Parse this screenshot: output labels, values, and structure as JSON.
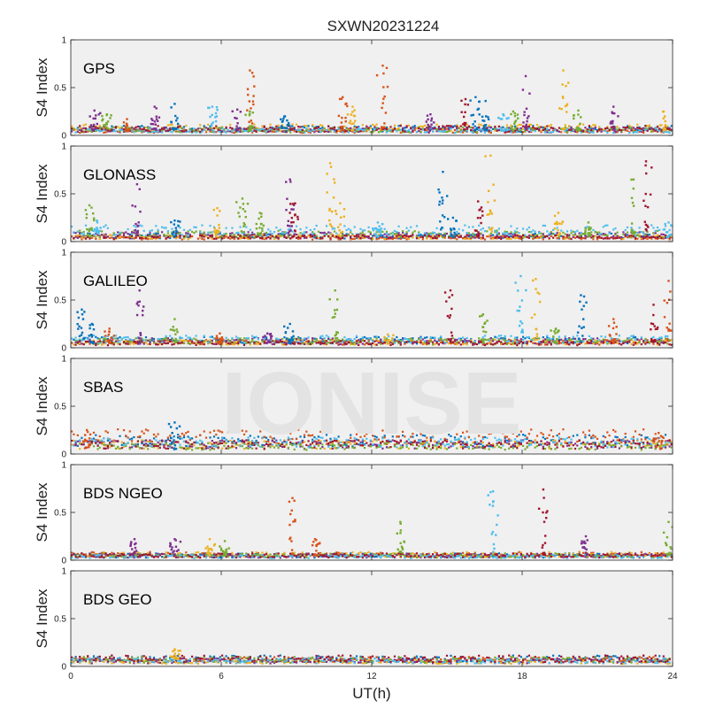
{
  "chart_data": {
    "type": "scatter",
    "title": "SXWN20231224",
    "watermark": "IONISE",
    "xlabel": "UT(h)",
    "ylabel": "S4 Index",
    "xlim": [
      0,
      24
    ],
    "ylim": [
      0,
      1
    ],
    "xticks": [
      "0",
      "6",
      "12",
      "18",
      "24"
    ],
    "yticks": [
      "0",
      "0.5",
      "1"
    ],
    "panel_background": "#f0f0f0",
    "series_colors": [
      "#0072BD",
      "#D95319",
      "#EDB120",
      "#7E2F8E",
      "#77AC30",
      "#4DBEEE",
      "#A2142F"
    ],
    "panels": [
      {
        "label": "GPS",
        "baseline": [
          0.07,
          0.05,
          0.08,
          0.06,
          0.06,
          0.05,
          0.07
        ],
        "spikes": [
          {
            "x": 0.9,
            "y": 0.26,
            "s": 3
          },
          {
            "x": 1.4,
            "y": 0.22,
            "s": 4
          },
          {
            "x": 2.2,
            "y": 0.17,
            "s": 1
          },
          {
            "x": 3.3,
            "y": 0.3,
            "s": 3
          },
          {
            "x": 4.1,
            "y": 0.33,
            "s": 0
          },
          {
            "x": 5.6,
            "y": 0.3,
            "s": 5
          },
          {
            "x": 6.6,
            "y": 0.27,
            "s": 3
          },
          {
            "x": 7.1,
            "y": 0.68,
            "s": 1
          },
          {
            "x": 7.1,
            "y": 0.25,
            "s": 4
          },
          {
            "x": 8.5,
            "y": 0.2,
            "s": 0
          },
          {
            "x": 10.8,
            "y": 0.4,
            "s": 1
          },
          {
            "x": 11.2,
            "y": 0.3,
            "s": 2
          },
          {
            "x": 12.4,
            "y": 0.73,
            "s": 1
          },
          {
            "x": 14.3,
            "y": 0.22,
            "s": 3
          },
          {
            "x": 15.7,
            "y": 0.38,
            "s": 6
          },
          {
            "x": 16.1,
            "y": 0.4,
            "s": 0
          },
          {
            "x": 16.5,
            "y": 0.36,
            "s": 0
          },
          {
            "x": 17.2,
            "y": 0.22,
            "s": 5
          },
          {
            "x": 18.1,
            "y": 0.62,
            "s": 3
          },
          {
            "x": 17.6,
            "y": 0.25,
            "s": 4
          },
          {
            "x": 19.6,
            "y": 0.68,
            "s": 2
          },
          {
            "x": 20.2,
            "y": 0.26,
            "s": 4
          },
          {
            "x": 21.6,
            "y": 0.3,
            "s": 3
          },
          {
            "x": 23.6,
            "y": 0.25,
            "s": 2
          }
        ]
      },
      {
        "label": "GLONASS",
        "baseline": [
          0.06,
          0.04,
          0.05,
          0.07,
          0.08,
          0.12,
          0.05
        ],
        "spikes": [
          {
            "x": 0.7,
            "y": 0.38,
            "s": 4
          },
          {
            "x": 1.0,
            "y": 0.22,
            "s": 5
          },
          {
            "x": 2.6,
            "y": 0.6,
            "s": 3
          },
          {
            "x": 4.1,
            "y": 0.22,
            "s": 0
          },
          {
            "x": 5.8,
            "y": 0.35,
            "s": 2
          },
          {
            "x": 6.8,
            "y": 0.45,
            "s": 4
          },
          {
            "x": 7.5,
            "y": 0.3,
            "s": 4
          },
          {
            "x": 8.7,
            "y": 0.65,
            "s": 3
          },
          {
            "x": 8.9,
            "y": 0.4,
            "s": 6
          },
          {
            "x": 10.3,
            "y": 0.82,
            "s": 2
          },
          {
            "x": 10.7,
            "y": 0.4,
            "s": 2
          },
          {
            "x": 12.2,
            "y": 0.2,
            "s": 5
          },
          {
            "x": 14.8,
            "y": 0.73,
            "s": 0
          },
          {
            "x": 15.2,
            "y": 0.25,
            "s": 0
          },
          {
            "x": 16.2,
            "y": 0.42,
            "s": 6
          },
          {
            "x": 16.7,
            "y": 0.9,
            "s": 2
          },
          {
            "x": 19.4,
            "y": 0.3,
            "s": 2
          },
          {
            "x": 20.6,
            "y": 0.2,
            "s": 4
          },
          {
            "x": 22.4,
            "y": 0.65,
            "s": 4
          },
          {
            "x": 22.9,
            "y": 0.84,
            "s": 6
          },
          {
            "x": 23.8,
            "y": 0.2,
            "s": 5
          }
        ]
      },
      {
        "label": "GALILEO",
        "baseline": [
          0.08,
          0.06,
          0.06,
          0.07,
          0.07,
          0.09,
          0.05
        ],
        "spikes": [
          {
            "x": 0.4,
            "y": 0.4,
            "s": 0
          },
          {
            "x": 0.8,
            "y": 0.25,
            "s": 0
          },
          {
            "x": 1.5,
            "y": 0.2,
            "s": 1
          },
          {
            "x": 2.7,
            "y": 0.6,
            "s": 3
          },
          {
            "x": 4.1,
            "y": 0.3,
            "s": 4
          },
          {
            "x": 5.9,
            "y": 0.15,
            "s": 1
          },
          {
            "x": 7.8,
            "y": 0.15,
            "s": 3
          },
          {
            "x": 8.7,
            "y": 0.25,
            "s": 0
          },
          {
            "x": 10.5,
            "y": 0.6,
            "s": 4
          },
          {
            "x": 12.6,
            "y": 0.14,
            "s": 2
          },
          {
            "x": 15.1,
            "y": 0.6,
            "s": 6
          },
          {
            "x": 16.4,
            "y": 0.35,
            "s": 4
          },
          {
            "x": 17.9,
            "y": 0.75,
            "s": 5
          },
          {
            "x": 18.5,
            "y": 0.72,
            "s": 2
          },
          {
            "x": 19.3,
            "y": 0.2,
            "s": 4
          },
          {
            "x": 20.3,
            "y": 0.55,
            "s": 0
          },
          {
            "x": 21.6,
            "y": 0.3,
            "s": 1
          },
          {
            "x": 23.2,
            "y": 0.45,
            "s": 6
          },
          {
            "x": 23.8,
            "y": 0.7,
            "s": 1
          }
        ]
      },
      {
        "label": "SBAS",
        "baseline": [
          0.14,
          0.18,
          0.1,
          0.1,
          0.08,
          0.12,
          0.1
        ],
        "spikes": [
          {
            "x": 4.1,
            "y": 0.33,
            "s": 0
          },
          {
            "x": 0.6,
            "y": 0.25,
            "s": 1
          },
          {
            "x": 23.4,
            "y": 0.22,
            "s": 1
          }
        ]
      },
      {
        "label": "BDS NGEO",
        "baseline": [
          0.05,
          0.06,
          0.06,
          0.05,
          0.05,
          0.04,
          0.05
        ],
        "spikes": [
          {
            "x": 2.5,
            "y": 0.22,
            "s": 3
          },
          {
            "x": 4.1,
            "y": 0.22,
            "s": 3
          },
          {
            "x": 5.5,
            "y": 0.22,
            "s": 2
          },
          {
            "x": 6.1,
            "y": 0.2,
            "s": 4
          },
          {
            "x": 8.8,
            "y": 0.65,
            "s": 1
          },
          {
            "x": 9.7,
            "y": 0.22,
            "s": 1
          },
          {
            "x": 13.1,
            "y": 0.4,
            "s": 4
          },
          {
            "x": 16.8,
            "y": 0.72,
            "s": 5
          },
          {
            "x": 18.8,
            "y": 0.74,
            "s": 6
          },
          {
            "x": 20.5,
            "y": 0.25,
            "s": 3
          },
          {
            "x": 23.8,
            "y": 0.4,
            "s": 4
          }
        ]
      },
      {
        "label": "BDS GEO",
        "baseline": [
          0.08,
          0.07,
          0.05,
          0.06,
          0.07,
          0.06,
          0.08
        ],
        "spikes": [
          {
            "x": 4.1,
            "y": 0.18,
            "s": 2
          }
        ]
      }
    ]
  }
}
